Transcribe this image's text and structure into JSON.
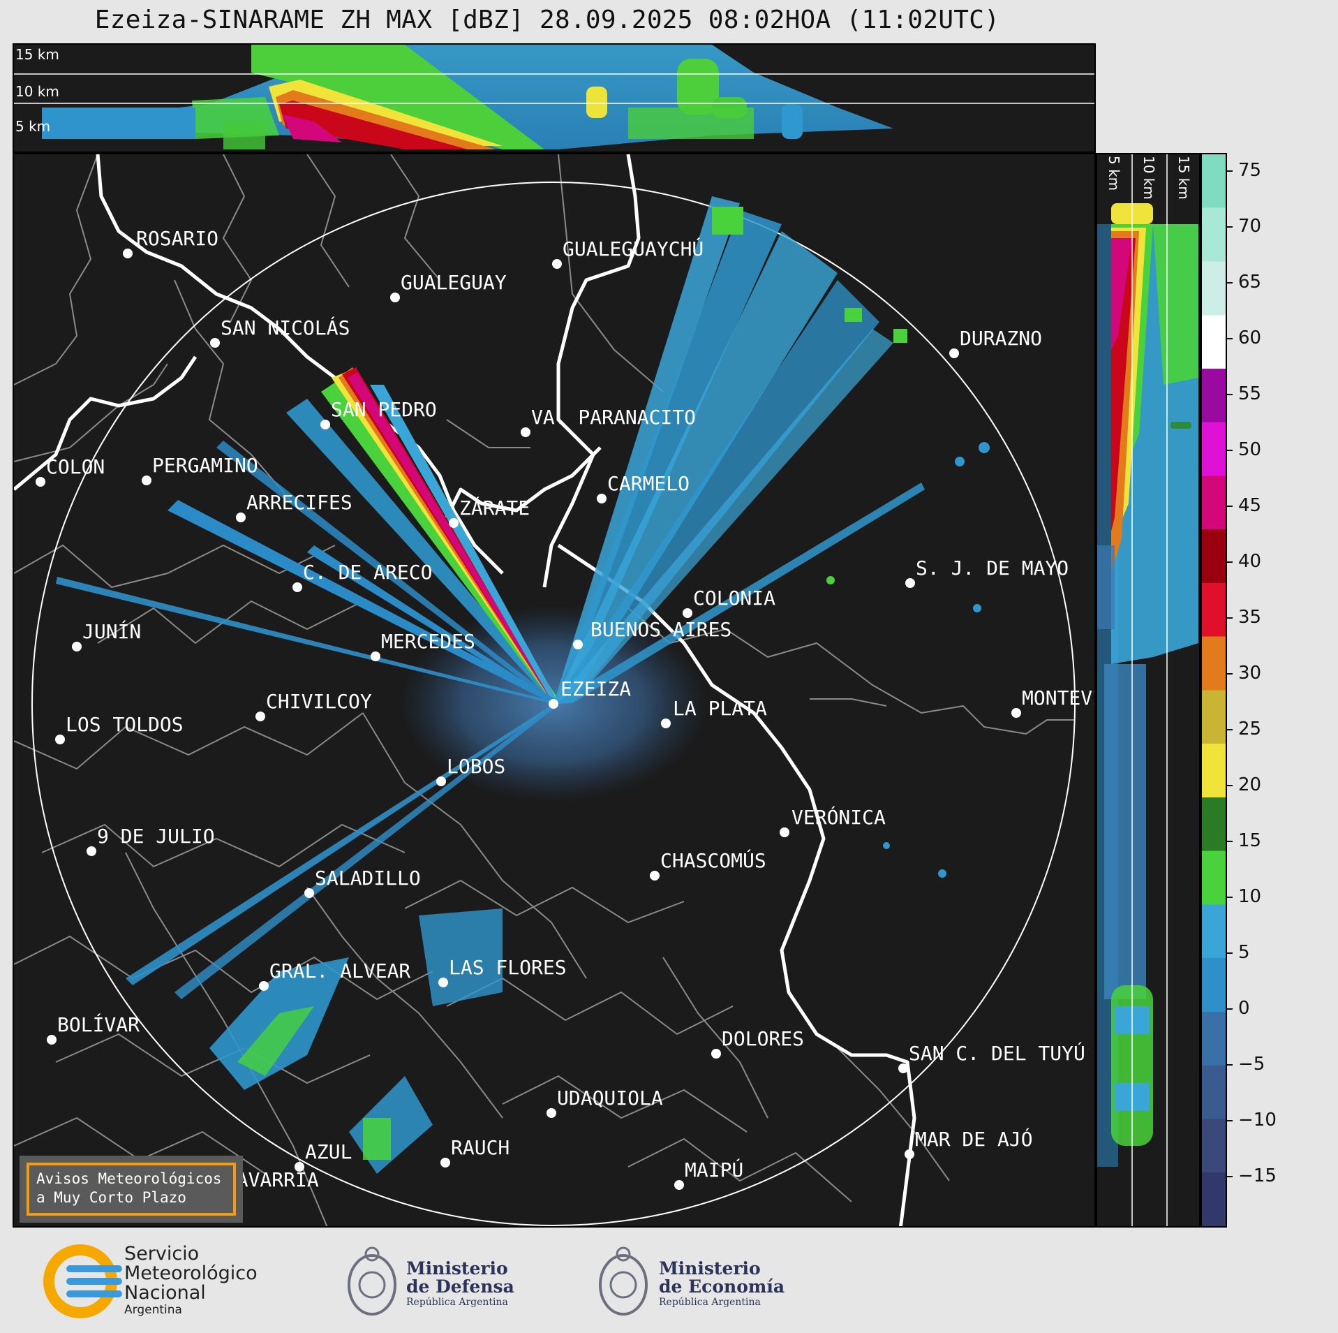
{
  "title": "Ezeiza-SINARAME ZH MAX [dBZ] 28.09.2025 08:02HOA (11:02UTC)",
  "top_panel": {
    "height_labels": [
      "15 km",
      "10 km",
      "5 km"
    ]
  },
  "side_panel": {
    "height_labels": [
      "5 km",
      "10 km",
      "15 km"
    ]
  },
  "colorbar": {
    "ticks": [
      "75",
      "70",
      "65",
      "60",
      "55",
      "50",
      "45",
      "40",
      "35",
      "30",
      "25",
      "20",
      "15",
      "10",
      "5",
      "0",
      "−5",
      "−10",
      "−15"
    ],
    "min": -20,
    "max": 76
  },
  "cities": [
    {
      "name": "ROSARIO"
    },
    {
      "name": "GUALEGUAYCHÚ"
    },
    {
      "name": "GUALEGUAY"
    },
    {
      "name": "SAN NICOLÁS"
    },
    {
      "name": "DURAZNO"
    },
    {
      "name": "SAN PEDRO"
    },
    {
      "name": "VA. PARANACITO"
    },
    {
      "name": "COLON"
    },
    {
      "name": "PERGAMINO"
    },
    {
      "name": "CARMELO"
    },
    {
      "name": "ARRECIFES"
    },
    {
      "name": "ZÁRATE"
    },
    {
      "name": "S. J. DE MAYO"
    },
    {
      "name": "C. DE ARECO"
    },
    {
      "name": "COLONIA"
    },
    {
      "name": "JUNÍN"
    },
    {
      "name": "MERCEDES"
    },
    {
      "name": "BUENOS AIRES"
    },
    {
      "name": "EZEIZA"
    },
    {
      "name": "MONTEVIDEO"
    },
    {
      "name": "CHIVILCOY"
    },
    {
      "name": "LA PLATA"
    },
    {
      "name": "LOS TOLDOS"
    },
    {
      "name": "LOBOS"
    },
    {
      "name": "VERÓNICA"
    },
    {
      "name": "9 DE JULIO"
    },
    {
      "name": "CHASCOMÚS"
    },
    {
      "name": "SALADILLO"
    },
    {
      "name": "GRAL. ALVEAR"
    },
    {
      "name": "LAS FLORES"
    },
    {
      "name": "BOLÍVAR"
    },
    {
      "name": "DOLORES"
    },
    {
      "name": "SAN C. DEL TUYÚ"
    },
    {
      "name": "UDAQUIOLA"
    },
    {
      "name": "MAR DE AJÓ"
    },
    {
      "name": "RAUCH"
    },
    {
      "name": "AZUL"
    },
    {
      "name": "OLAVARRÍA"
    },
    {
      "name": "MAIPÚ"
    }
  ],
  "avisos": {
    "line1": "Avisos Meteorológicos",
    "line2": "a Muy Corto Plazo"
  },
  "footer": {
    "smn": {
      "line1": "Servicio",
      "line2": "Meteorológico",
      "line3": "Nacional",
      "line4": "Argentina"
    },
    "defensa": {
      "line1": "Ministerio",
      "line2": "de Defensa",
      "line3": "República Argentina"
    },
    "economia": {
      "line1": "Ministerio",
      "line2": "de Economía",
      "line3": "República Argentina"
    }
  }
}
